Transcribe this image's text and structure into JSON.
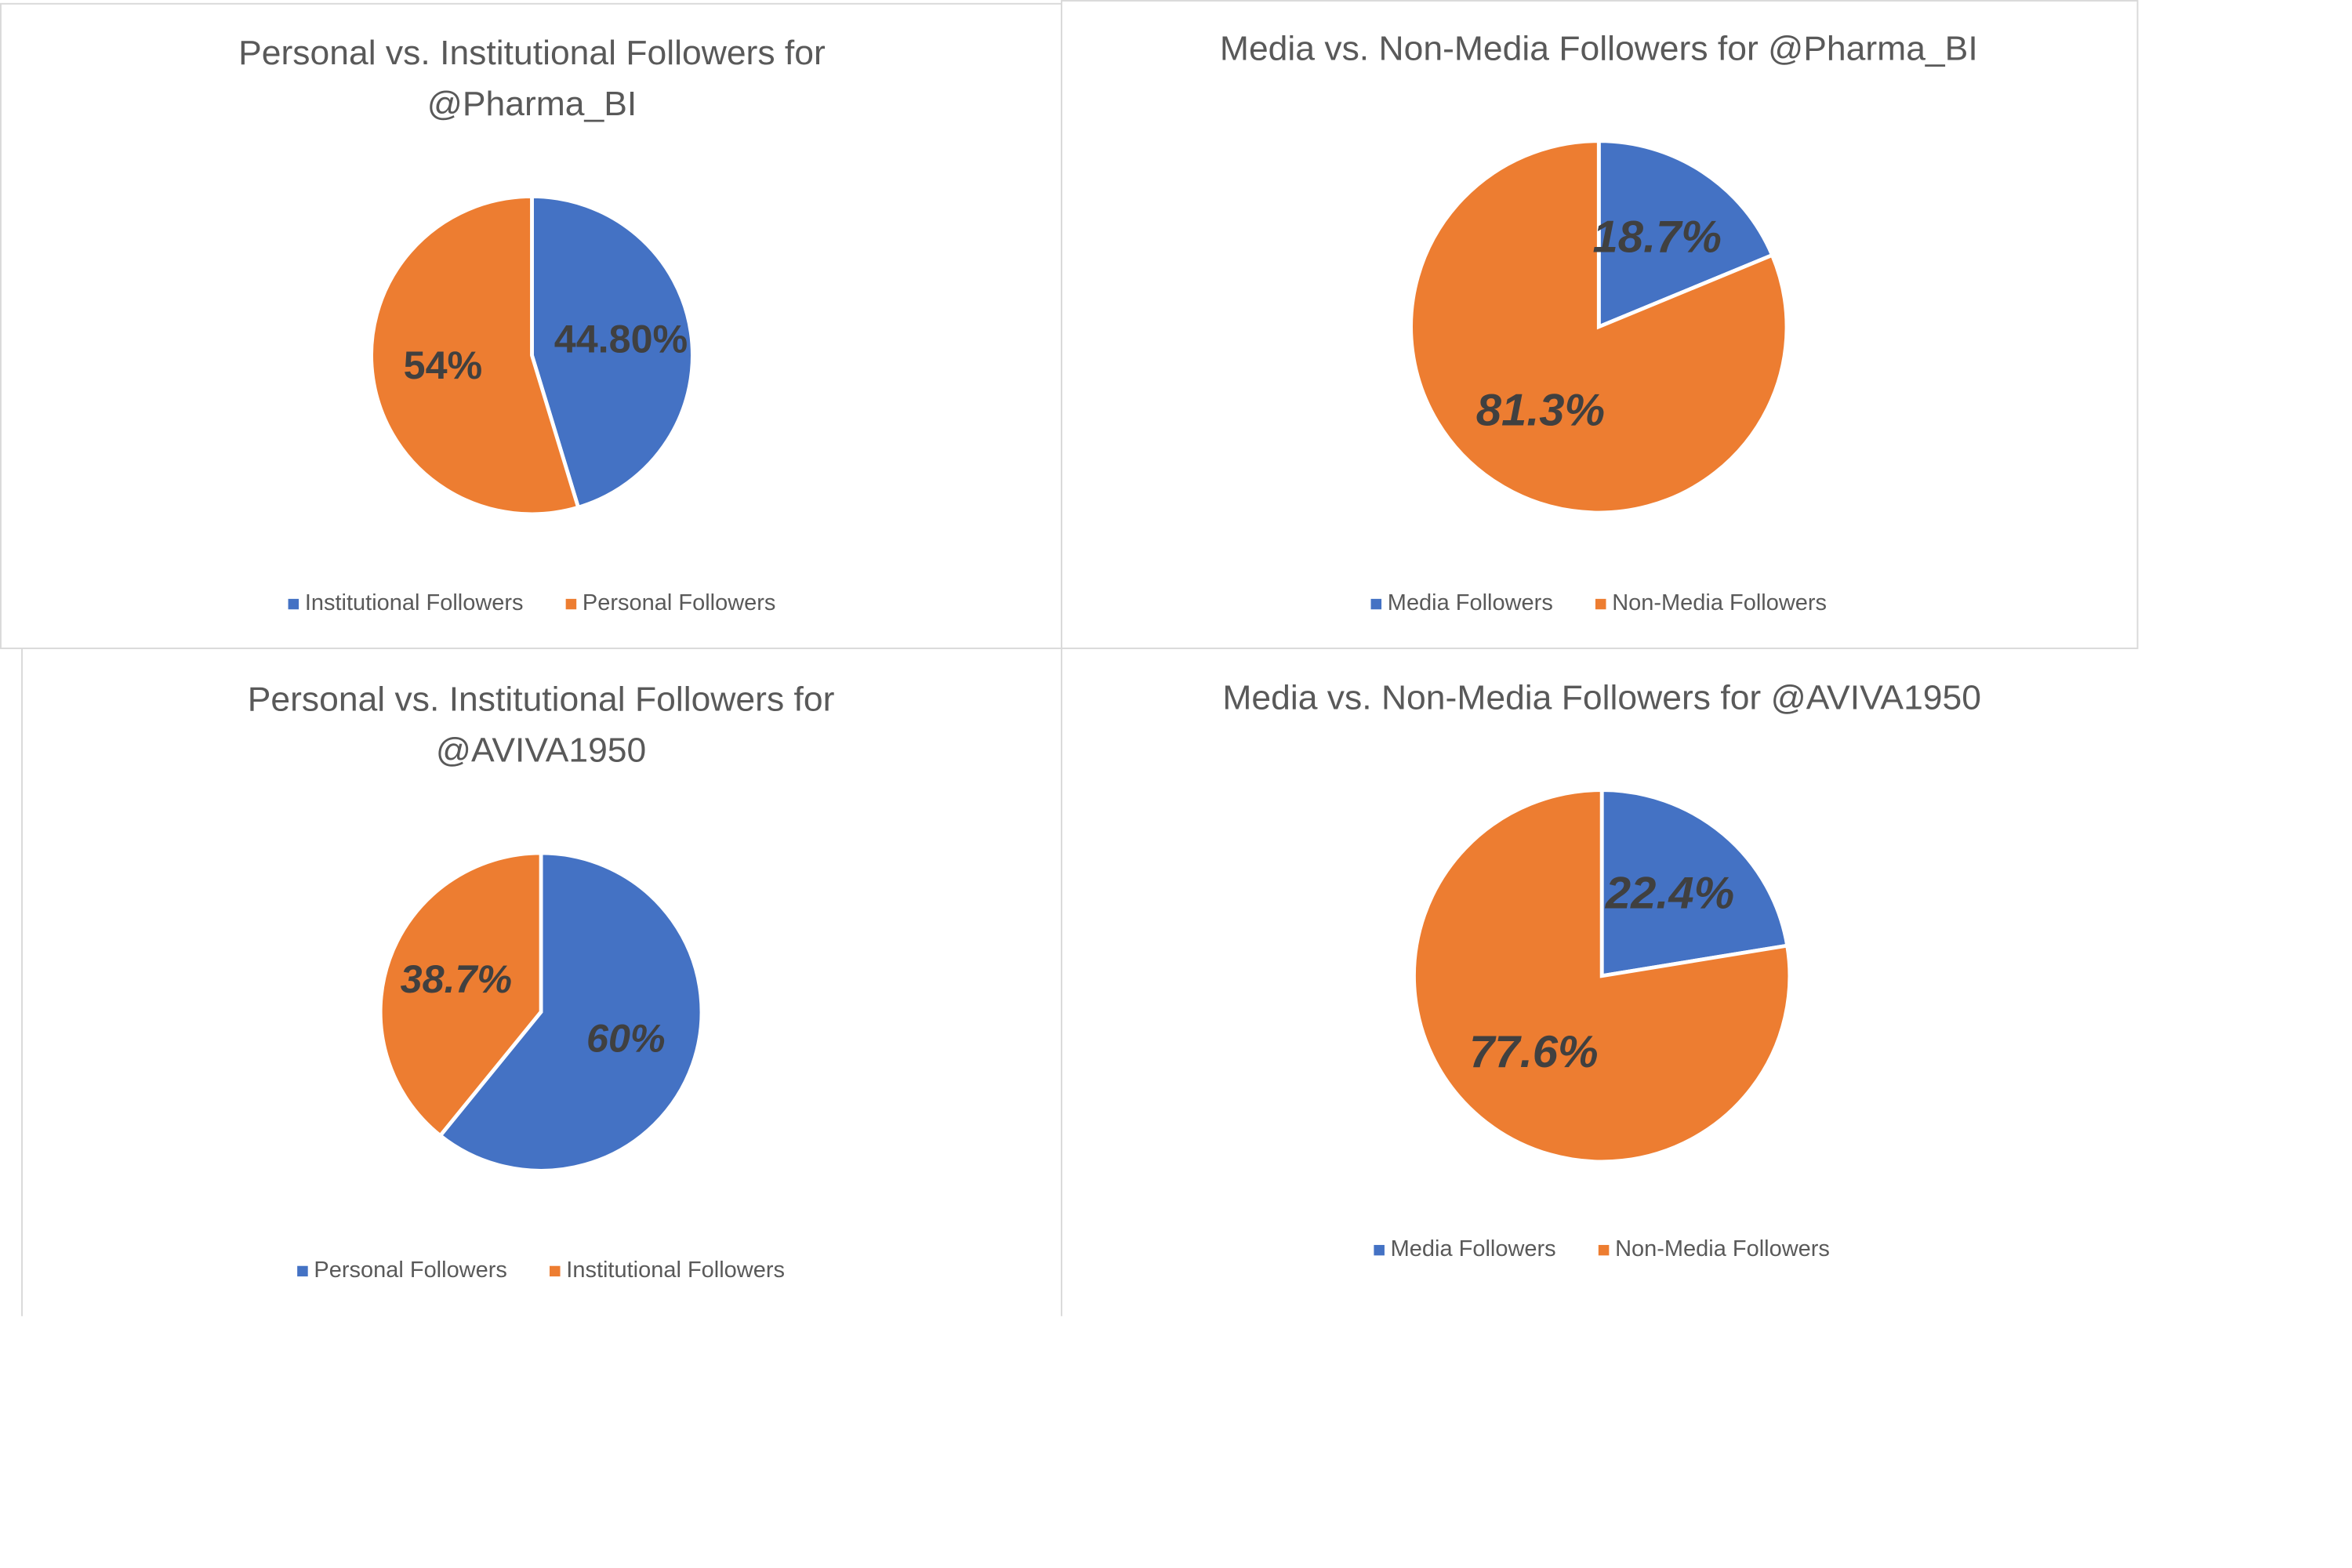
{
  "chart_data": [
    {
      "type": "pie",
      "title": "Personal vs. Institutional Followers for @Pharma_BI",
      "categories": [
        "Institutional Followers",
        "Personal Followers"
      ],
      "values": [
        44.8,
        54
      ],
      "value_labels": [
        "44.80%",
        "54%"
      ],
      "colors": [
        "#4472c4",
        "#ed7d31"
      ],
      "label_italic": false
    },
    {
      "type": "pie",
      "title": "Media vs. Non-Media Followers for @Pharma_BI",
      "categories": [
        "Media Followers",
        "Non-Media Followers"
      ],
      "values": [
        18.7,
        81.3
      ],
      "value_labels": [
        "18.7%",
        "81.3%"
      ],
      "colors": [
        "#4472c4",
        "#ed7d31"
      ],
      "label_italic": true
    },
    {
      "type": "pie",
      "title": "Personal vs. Institutional Followers for @AVIVA1950",
      "categories": [
        "Personal Followers",
        "Institutional Followers"
      ],
      "values": [
        60,
        38.7
      ],
      "value_labels": [
        "60%",
        "38.7%"
      ],
      "colors": [
        "#4472c4",
        "#ed7d31"
      ],
      "label_italic": true
    },
    {
      "type": "pie",
      "title": "Media vs. Non-Media Followers for @AVIVA1950",
      "categories": [
        "Media Followers",
        "Non-Media Followers"
      ],
      "values": [
        22.4,
        77.6
      ],
      "value_labels": [
        "22.4%",
        "77.6%"
      ],
      "colors": [
        "#4472c4",
        "#ed7d31"
      ],
      "label_italic": true
    }
  ]
}
